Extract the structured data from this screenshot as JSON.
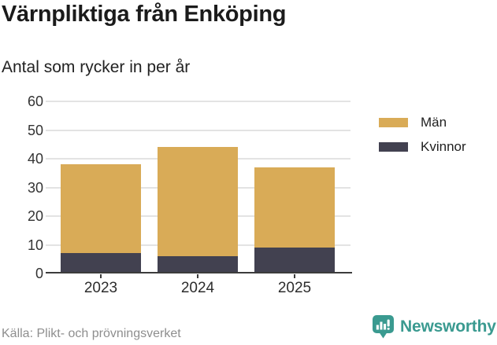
{
  "title": "Värnpliktiga från Enköping",
  "subtitle": "Antal som rycker in per år",
  "source_text": "Källa: Plikt- och prövningsverket",
  "brand": {
    "wordmark": "Newsworthy",
    "color": "#3a9a90",
    "icon": "newsworthy-bar-chart-bubble-icon"
  },
  "colors": {
    "men": "#d9ab57",
    "women": "#424150",
    "grid": "#e3e3e3",
    "axis": "#3c3c3c",
    "title_text": "#1b1b1b",
    "muted_text": "#8e8e8e",
    "background": "#ffffff"
  },
  "legend": {
    "items": [
      {
        "label": "Män",
        "color": "#d9ab57"
      },
      {
        "label": "Kvinnor",
        "color": "#424150"
      }
    ]
  },
  "chart_data": {
    "type": "bar",
    "stacked": true,
    "title": "Värnpliktiga från Enköping",
    "subtitle": "Antal som rycker in per år",
    "categories": [
      "2023",
      "2024",
      "2025"
    ],
    "series": [
      {
        "name": "Kvinnor",
        "color": "#424150",
        "values": [
          7,
          6,
          9
        ]
      },
      {
        "name": "Män",
        "color": "#d9ab57",
        "values": [
          31,
          38,
          28
        ]
      }
    ],
    "totals": [
      38,
      44,
      37
    ],
    "xlabel": "",
    "ylabel": "",
    "ylim": [
      0,
      60
    ],
    "yticks": [
      0,
      10,
      20,
      30,
      40,
      50,
      60
    ],
    "grid": "horizontal",
    "legend_position": "right"
  }
}
